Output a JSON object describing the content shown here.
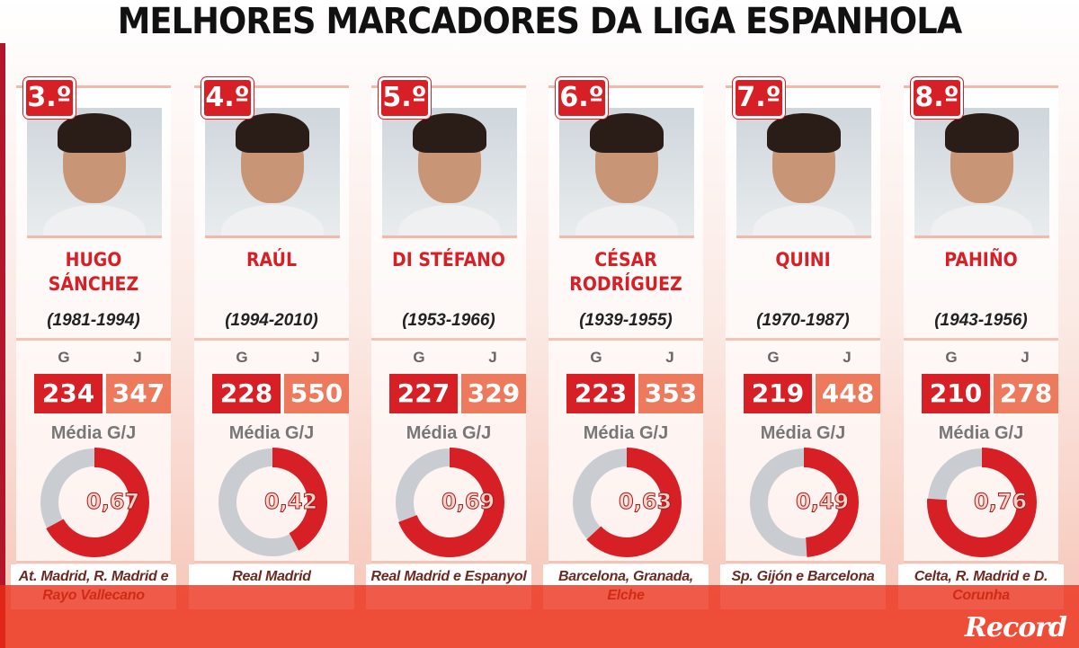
{
  "title": "MELHORES MARCADORES DA LIGA ESPANHOLA",
  "labels": {
    "goals": "G",
    "games": "J",
    "average": "Média G/J"
  },
  "logo": "Record",
  "colors": {
    "red": "#d71f26",
    "orange": "#ee7a5d",
    "gray": "#c9cdd1"
  },
  "players": [
    {
      "rank": "3.º",
      "name": "HUGO SÁNCHEZ",
      "years": "(1981-1994)",
      "goals": "234",
      "games": "347",
      "average": "0,67",
      "ratio": 0.67,
      "teams": "At. Madrid, R. Madrid e Rayo Vallecano"
    },
    {
      "rank": "4.º",
      "name": "RAÚL",
      "years": "(1994-2010)",
      "goals": "228",
      "games": "550",
      "average": "0,42",
      "ratio": 0.42,
      "teams": "Real Madrid"
    },
    {
      "rank": "5.º",
      "name": "DI STÉFANO",
      "years": "(1953-1966)",
      "goals": "227",
      "games": "329",
      "average": "0,69",
      "ratio": 0.69,
      "teams": "Real Madrid e Espanyol"
    },
    {
      "rank": "6.º",
      "name": "CÉSAR RODRÍGUEZ",
      "years": "(1939-1955)",
      "goals": "223",
      "games": "353",
      "average": "0,63",
      "ratio": 0.63,
      "teams": "Barcelona, Granada, Elche"
    },
    {
      "rank": "7.º",
      "name": "QUINI",
      "years": "(1970-1987)",
      "goals": "219",
      "games": "448",
      "average": "0,49",
      "ratio": 0.49,
      "teams": "Sp. Gijón e Barcelona"
    },
    {
      "rank": "8.º",
      "name": "PAHIÑO",
      "years": "(1943-1956)",
      "goals": "210",
      "games": "278",
      "average": "0,76",
      "ratio": 0.76,
      "teams": "Celta, R. Madrid e D. Corunha"
    }
  ]
}
